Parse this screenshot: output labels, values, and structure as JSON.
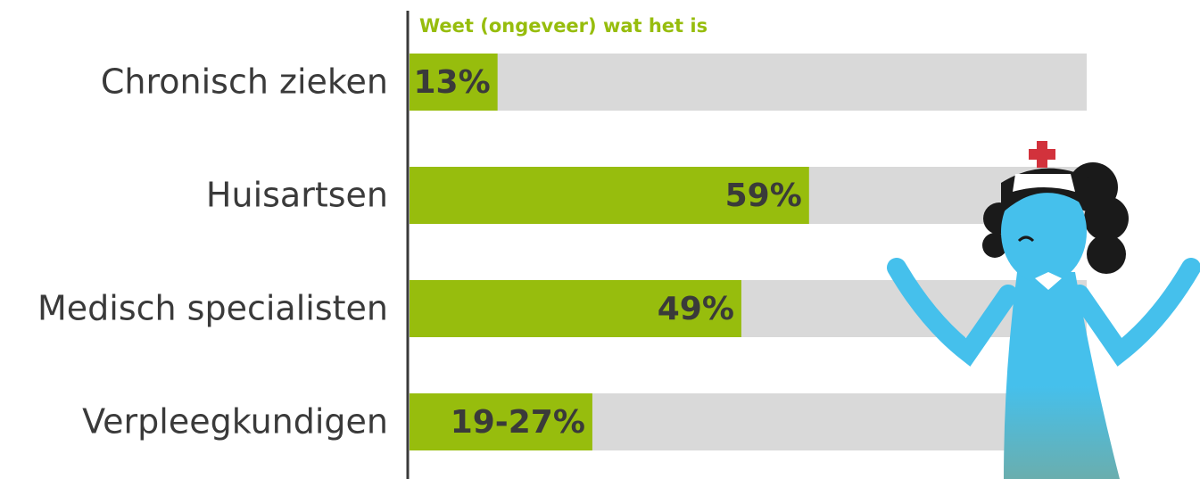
{
  "chart_data": {
    "type": "bar",
    "orientation": "horizontal",
    "series_name": "Weet (ongeveer) wat het is",
    "categories": [
      "Chronisch zieken",
      "Huisartsen",
      "Medisch specialisten",
      "Verpleegkundigen"
    ],
    "values": [
      13,
      59,
      49,
      27
    ],
    "value_labels": [
      "13%",
      "59%",
      "49%",
      "19-27%"
    ],
    "color": "#97bd0d",
    "track_color": "#d9d9d9",
    "xlim": [
      0,
      100
    ]
  }
}
